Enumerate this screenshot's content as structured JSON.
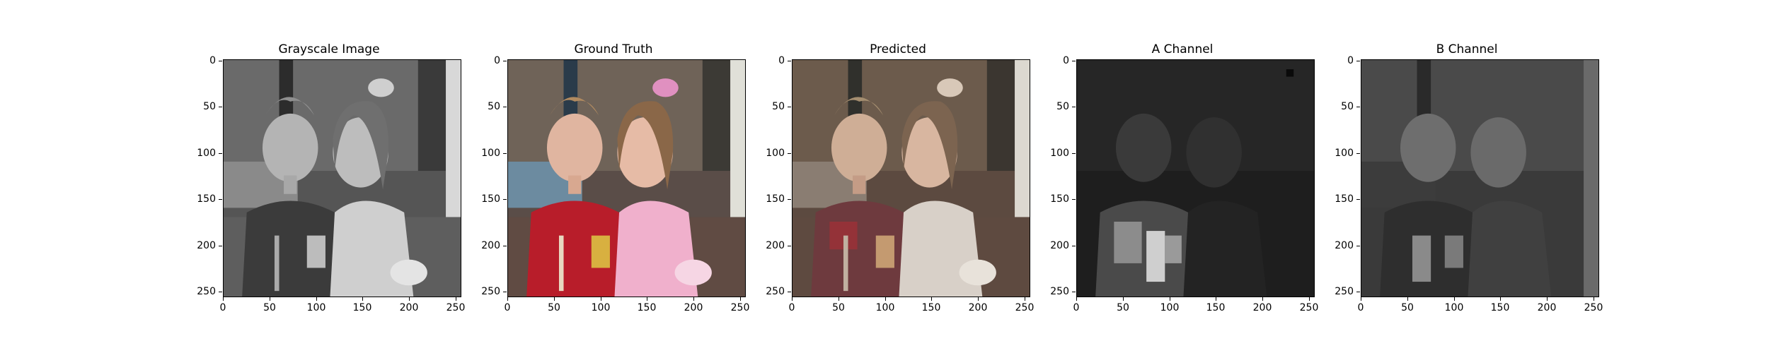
{
  "figure": {
    "panels": [
      {
        "title": "Grayscale Image",
        "kind": "grayscale"
      },
      {
        "title": "Ground Truth",
        "kind": "color"
      },
      {
        "title": "Predicted",
        "kind": "predicted"
      },
      {
        "title": "A Channel",
        "kind": "a-channel"
      },
      {
        "title": "B Channel",
        "kind": "b-channel"
      }
    ],
    "y_ticks": [
      "0",
      "50",
      "100",
      "150",
      "200",
      "250"
    ],
    "x_ticks": [
      "0",
      "50",
      "100",
      "150",
      "200",
      "250"
    ],
    "axis_range": [
      0,
      256
    ]
  }
}
